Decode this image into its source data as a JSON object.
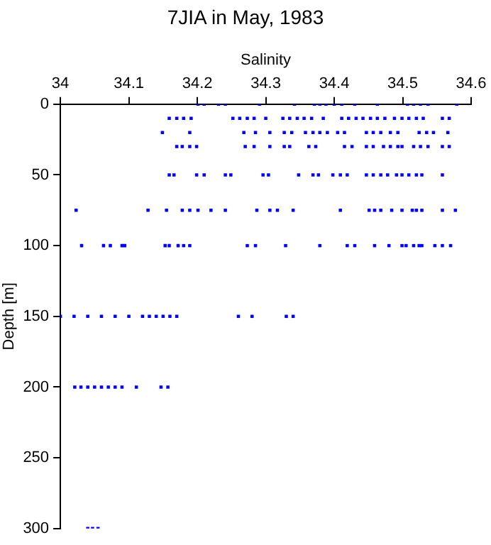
{
  "chart_data": {
    "type": "scatter",
    "title": "7JIA in May, 1983",
    "xlabel": "Salinity",
    "ylabel": "Depth [m]",
    "xlim": [
      34,
      34.6
    ],
    "xticks": [
      34,
      34.1,
      34.2,
      34.3,
      34.4,
      34.5,
      34.6
    ],
    "ylim": [
      300,
      0
    ],
    "yticks": [
      0,
      50,
      100,
      150,
      200,
      250,
      300
    ],
    "grid": false,
    "legend": false,
    "marker": "square",
    "series": [
      {
        "color": "#0000ff",
        "x": [
          34.201,
          34.21,
          34.231,
          34.241,
          34.291,
          34.342,
          34.371,
          34.379,
          34.388,
          34.4,
          34.411,
          34.43,
          34.463,
          34.507,
          34.516,
          34.526,
          34.537,
          34.579,
          34.159,
          34.17,
          34.18,
          34.191,
          34.252,
          34.262,
          34.273,
          34.283,
          34.3,
          34.325,
          34.335,
          34.346,
          34.356,
          34.367,
          34.384,
          34.411,
          34.421,
          34.432,
          34.442,
          34.453,
          34.463,
          34.474,
          34.488,
          34.499,
          34.509,
          34.52,
          34.53,
          34.558,
          34.568,
          34.149,
          34.189,
          34.268,
          34.285,
          34.306,
          34.327,
          34.338,
          34.358,
          34.369,
          34.379,
          34.39,
          34.405,
          34.415,
          34.447,
          34.457,
          34.468,
          34.482,
          34.493,
          34.524,
          34.535,
          34.545,
          34.566,
          34.17,
          34.178,
          34.189,
          34.199,
          34.27,
          34.283,
          34.306,
          34.327,
          34.335,
          34.363,
          34.373,
          34.415,
          34.426,
          34.447,
          34.457,
          34.472,
          34.482,
          34.493,
          34.499,
          34.516,
          34.526,
          34.537,
          34.558,
          34.568,
          34.159,
          34.166,
          34.199,
          34.21,
          34.241,
          34.249,
          34.296,
          34.304,
          34.348,
          34.369,
          34.377,
          34.398,
          34.409,
          34.419,
          34.447,
          34.457,
          34.468,
          34.478,
          34.491,
          34.499,
          34.509,
          34.52,
          34.528,
          34.558,
          34.023,
          34.128,
          34.155,
          34.178,
          34.189,
          34.201,
          34.22,
          34.241,
          34.287,
          34.306,
          34.317,
          34.34,
          34.409,
          34.451,
          34.459,
          34.468,
          34.484,
          34.499,
          34.514,
          34.52,
          34.528,
          34.558,
          34.577,
          34.031,
          34.063,
          34.073,
          34.09,
          34.094,
          34.153,
          34.159,
          34.172,
          34.18,
          34.189,
          34.273,
          34.285,
          34.329,
          34.379,
          34.419,
          34.43,
          34.459,
          34.48,
          34.499,
          34.505,
          34.516,
          34.524,
          34.528,
          34.547,
          34.558,
          34.57,
          34.0,
          34.02,
          34.04,
          34.06,
          34.08,
          34.1,
          34.12,
          34.13,
          34.14,
          34.15,
          34.16,
          34.17,
          34.26,
          34.28,
          34.33,
          34.34,
          34.021,
          34.03,
          34.04,
          34.05,
          34.06,
          34.07,
          34.08,
          34.09,
          34.111,
          34.147,
          34.157,
          34.04,
          34.047,
          34.055
        ],
        "values": [
          0,
          0,
          0,
          0,
          0,
          0,
          0,
          0,
          0,
          0,
          0,
          0,
          0,
          0,
          0,
          0,
          0,
          0,
          10,
          10,
          10,
          10,
          10,
          10,
          10,
          10,
          10,
          10,
          10,
          10,
          10,
          10,
          10,
          10,
          10,
          10,
          10,
          10,
          10,
          10,
          10,
          10,
          10,
          10,
          10,
          10,
          10,
          20,
          20,
          20,
          20,
          20,
          20,
          20,
          20,
          20,
          20,
          20,
          20,
          20,
          20,
          20,
          20,
          20,
          20,
          20,
          20,
          20,
          20,
          30,
          30,
          30,
          30,
          30,
          30,
          30,
          30,
          30,
          30,
          30,
          30,
          30,
          30,
          30,
          30,
          30,
          30,
          30,
          30,
          30,
          30,
          30,
          30,
          50,
          50,
          50,
          50,
          50,
          50,
          50,
          50,
          50,
          50,
          50,
          50,
          50,
          50,
          50,
          50,
          50,
          50,
          50,
          50,
          50,
          50,
          50,
          50,
          75,
          75,
          75,
          75,
          75,
          75,
          75,
          75,
          75,
          75,
          75,
          75,
          75,
          75,
          75,
          75,
          75,
          75,
          75,
          75,
          75,
          75,
          75,
          100,
          100,
          100,
          100,
          100,
          100,
          100,
          100,
          100,
          100,
          100,
          100,
          100,
          100,
          100,
          100,
          100,
          100,
          100,
          100,
          100,
          100,
          100,
          100,
          100,
          100,
          150,
          150,
          150,
          150,
          150,
          150,
          150,
          150,
          150,
          150,
          150,
          150,
          150,
          150,
          150,
          150,
          200,
          200,
          200,
          200,
          200,
          200,
          200,
          200,
          200,
          200,
          200,
          300,
          300,
          300
        ]
      }
    ]
  }
}
